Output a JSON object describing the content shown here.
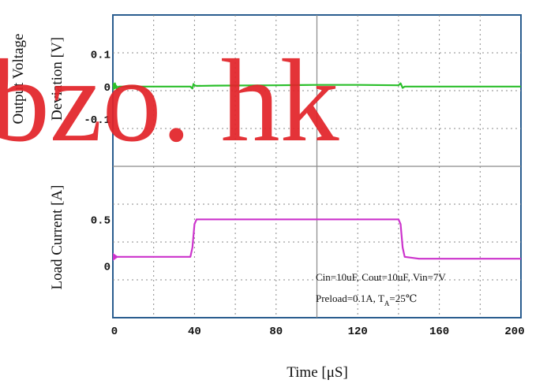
{
  "chart_data": {
    "type": "line",
    "xlabel": "Time [μS]",
    "x_ticks": [
      "0",
      "40",
      "80",
      "120",
      "160",
      "200"
    ],
    "xlim": [
      0,
      200
    ],
    "grid": true,
    "panels": [
      {
        "id": "voltage",
        "ylabel": [
          "Output Voltage",
          "Deviation [V]"
        ],
        "y_ticks": [
          {
            "label": "0.1",
            "value": 0.1
          },
          {
            "label": "0",
            "value": 0
          },
          {
            "label": "-0.1",
            "value": -0.1
          }
        ],
        "ylim": [
          -0.25,
          0.22
        ],
        "series": [
          {
            "color": "#2bbf2b",
            "x": [
              0,
              1,
              2,
              3,
              38,
              39,
              39.5,
              40,
              41,
              50,
              80,
              100,
              120,
              140,
              141,
              142,
              143,
              160,
              200
            ],
            "y": [
              0.0,
              0.01,
              -0.01,
              0.0,
              0.0,
              -0.006,
              0.008,
              0.004,
              0.002,
              0.003,
              0.004,
              0.005,
              0.005,
              0.004,
              0.01,
              -0.004,
              0.0,
              0.0,
              0.0
            ]
          }
        ]
      },
      {
        "id": "current",
        "ylabel": [
          "Load Current [A]"
        ],
        "y_ticks": [
          {
            "label": "0.5",
            "value": 0.5
          },
          {
            "label": "0",
            "value": 0
          }
        ],
        "ylim": [
          -0.55,
          1.05
        ],
        "series": [
          {
            "color": "#cc33cc",
            "x": [
              0,
              38,
              39,
              40,
              41,
              42,
              80,
              140,
              141,
              142,
              143,
              150,
              200
            ],
            "y": [
              0.1,
              0.1,
              0.2,
              0.45,
              0.5,
              0.5,
              0.5,
              0.5,
              0.45,
              0.2,
              0.1,
              0.08,
              0.08
            ]
          }
        ]
      }
    ],
    "annotations": [
      "Cin=10uF, Cout=10uF, Vin=7V",
      "Preload=0.1A, T",
      "A",
      "=25℃"
    ]
  },
  "watermark": "bzo. hk",
  "colors": {
    "frame": "#2a5d8f",
    "grid": "#8a8a8a",
    "watermark": "#e2242a"
  }
}
